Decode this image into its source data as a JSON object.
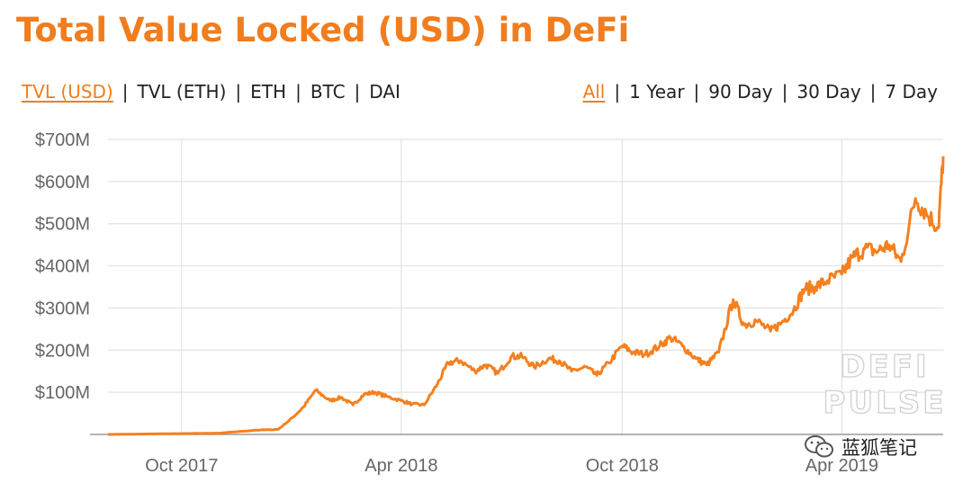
{
  "title": "Total Value Locked (USD) in DeFi",
  "metric_options": [
    {
      "label": "TVL (USD)",
      "active": true
    },
    {
      "label": "TVL (ETH)",
      "active": false
    },
    {
      "label": "ETH",
      "active": false
    },
    {
      "label": "BTC",
      "active": false
    },
    {
      "label": "DAI",
      "active": false
    }
  ],
  "range_options": [
    {
      "label": "All",
      "active": true
    },
    {
      "label": "1 Year",
      "active": false
    },
    {
      "label": "90 Day",
      "active": false
    },
    {
      "label": "30 Day",
      "active": false
    },
    {
      "label": "7 Day",
      "active": false
    }
  ],
  "separator": "|",
  "colors": {
    "accent": "#f07d1e",
    "line": "#f5801f",
    "grid": "#e3e3e3",
    "tick": "#666666"
  },
  "watermark": {
    "line1": "DEFI",
    "line2": "PULSE"
  },
  "brand_badge": {
    "text": "蓝狐笔记",
    "icon": "wechat-icon"
  },
  "chart_data": {
    "type": "line",
    "title": "Total Value Locked (USD) in DeFi",
    "xlabel": "",
    "ylabel": "",
    "x_ticks": [
      "Oct 2017",
      "Apr 2018",
      "Oct 2018",
      "Apr 2019"
    ],
    "x_range": [
      "2017-08-01",
      "2019-06-24"
    ],
    "y_ticks": [
      "$700M",
      "$600M",
      "$500M",
      "$400M",
      "$300M",
      "$200M",
      "$100M"
    ],
    "ylim": [
      0,
      700
    ],
    "y_unit": "USD millions",
    "grid": true,
    "legend": "none",
    "series": [
      {
        "x": [
          "2017-08-01",
          "2017-09-01",
          "2017-10-01",
          "2017-11-01",
          "2017-12-01",
          "2017-12-20",
          "2018-01-01",
          "2018-01-10",
          "2018-01-20",
          "2018-02-01",
          "2018-02-10",
          "2018-02-20",
          "2018-03-01",
          "2018-03-10",
          "2018-03-20",
          "2018-04-01",
          "2018-04-10",
          "2018-04-20",
          "2018-05-01",
          "2018-05-10",
          "2018-05-20",
          "2018-06-01",
          "2018-06-10",
          "2018-06-20",
          "2018-07-01",
          "2018-07-10",
          "2018-07-20",
          "2018-08-01",
          "2018-08-10",
          "2018-08-20",
          "2018-09-01",
          "2018-09-10",
          "2018-09-20",
          "2018-10-01",
          "2018-10-10",
          "2018-10-20",
          "2018-11-01",
          "2018-11-10",
          "2018-11-20",
          "2018-12-01",
          "2018-12-10",
          "2018-12-20",
          "2019-01-01",
          "2019-01-10",
          "2019-01-20",
          "2019-02-01",
          "2019-02-10",
          "2019-02-20",
          "2019-03-01",
          "2019-03-10",
          "2019-03-20",
          "2019-04-01",
          "2019-04-10",
          "2019-04-20",
          "2019-05-01",
          "2019-05-10",
          "2019-05-20",
          "2019-06-01",
          "2019-06-10",
          "2019-06-20",
          "2019-06-24"
        ],
        "y": [
          0,
          1,
          2,
          3,
          10,
          12,
          40,
          65,
          105,
          80,
          88,
          70,
          95,
          100,
          90,
          80,
          72,
          70,
          120,
          170,
          175,
          150,
          165,
          145,
          185,
          185,
          160,
          180,
          175,
          150,
          160,
          140,
          170,
          210,
          195,
          190,
          210,
          230,
          210,
          180,
          165,
          195,
          320,
          260,
          270,
          245,
          265,
          295,
          345,
          350,
          365,
          380,
          420,
          440,
          435,
          450,
          410,
          560,
          525,
          490,
          660
        ]
      }
    ]
  }
}
